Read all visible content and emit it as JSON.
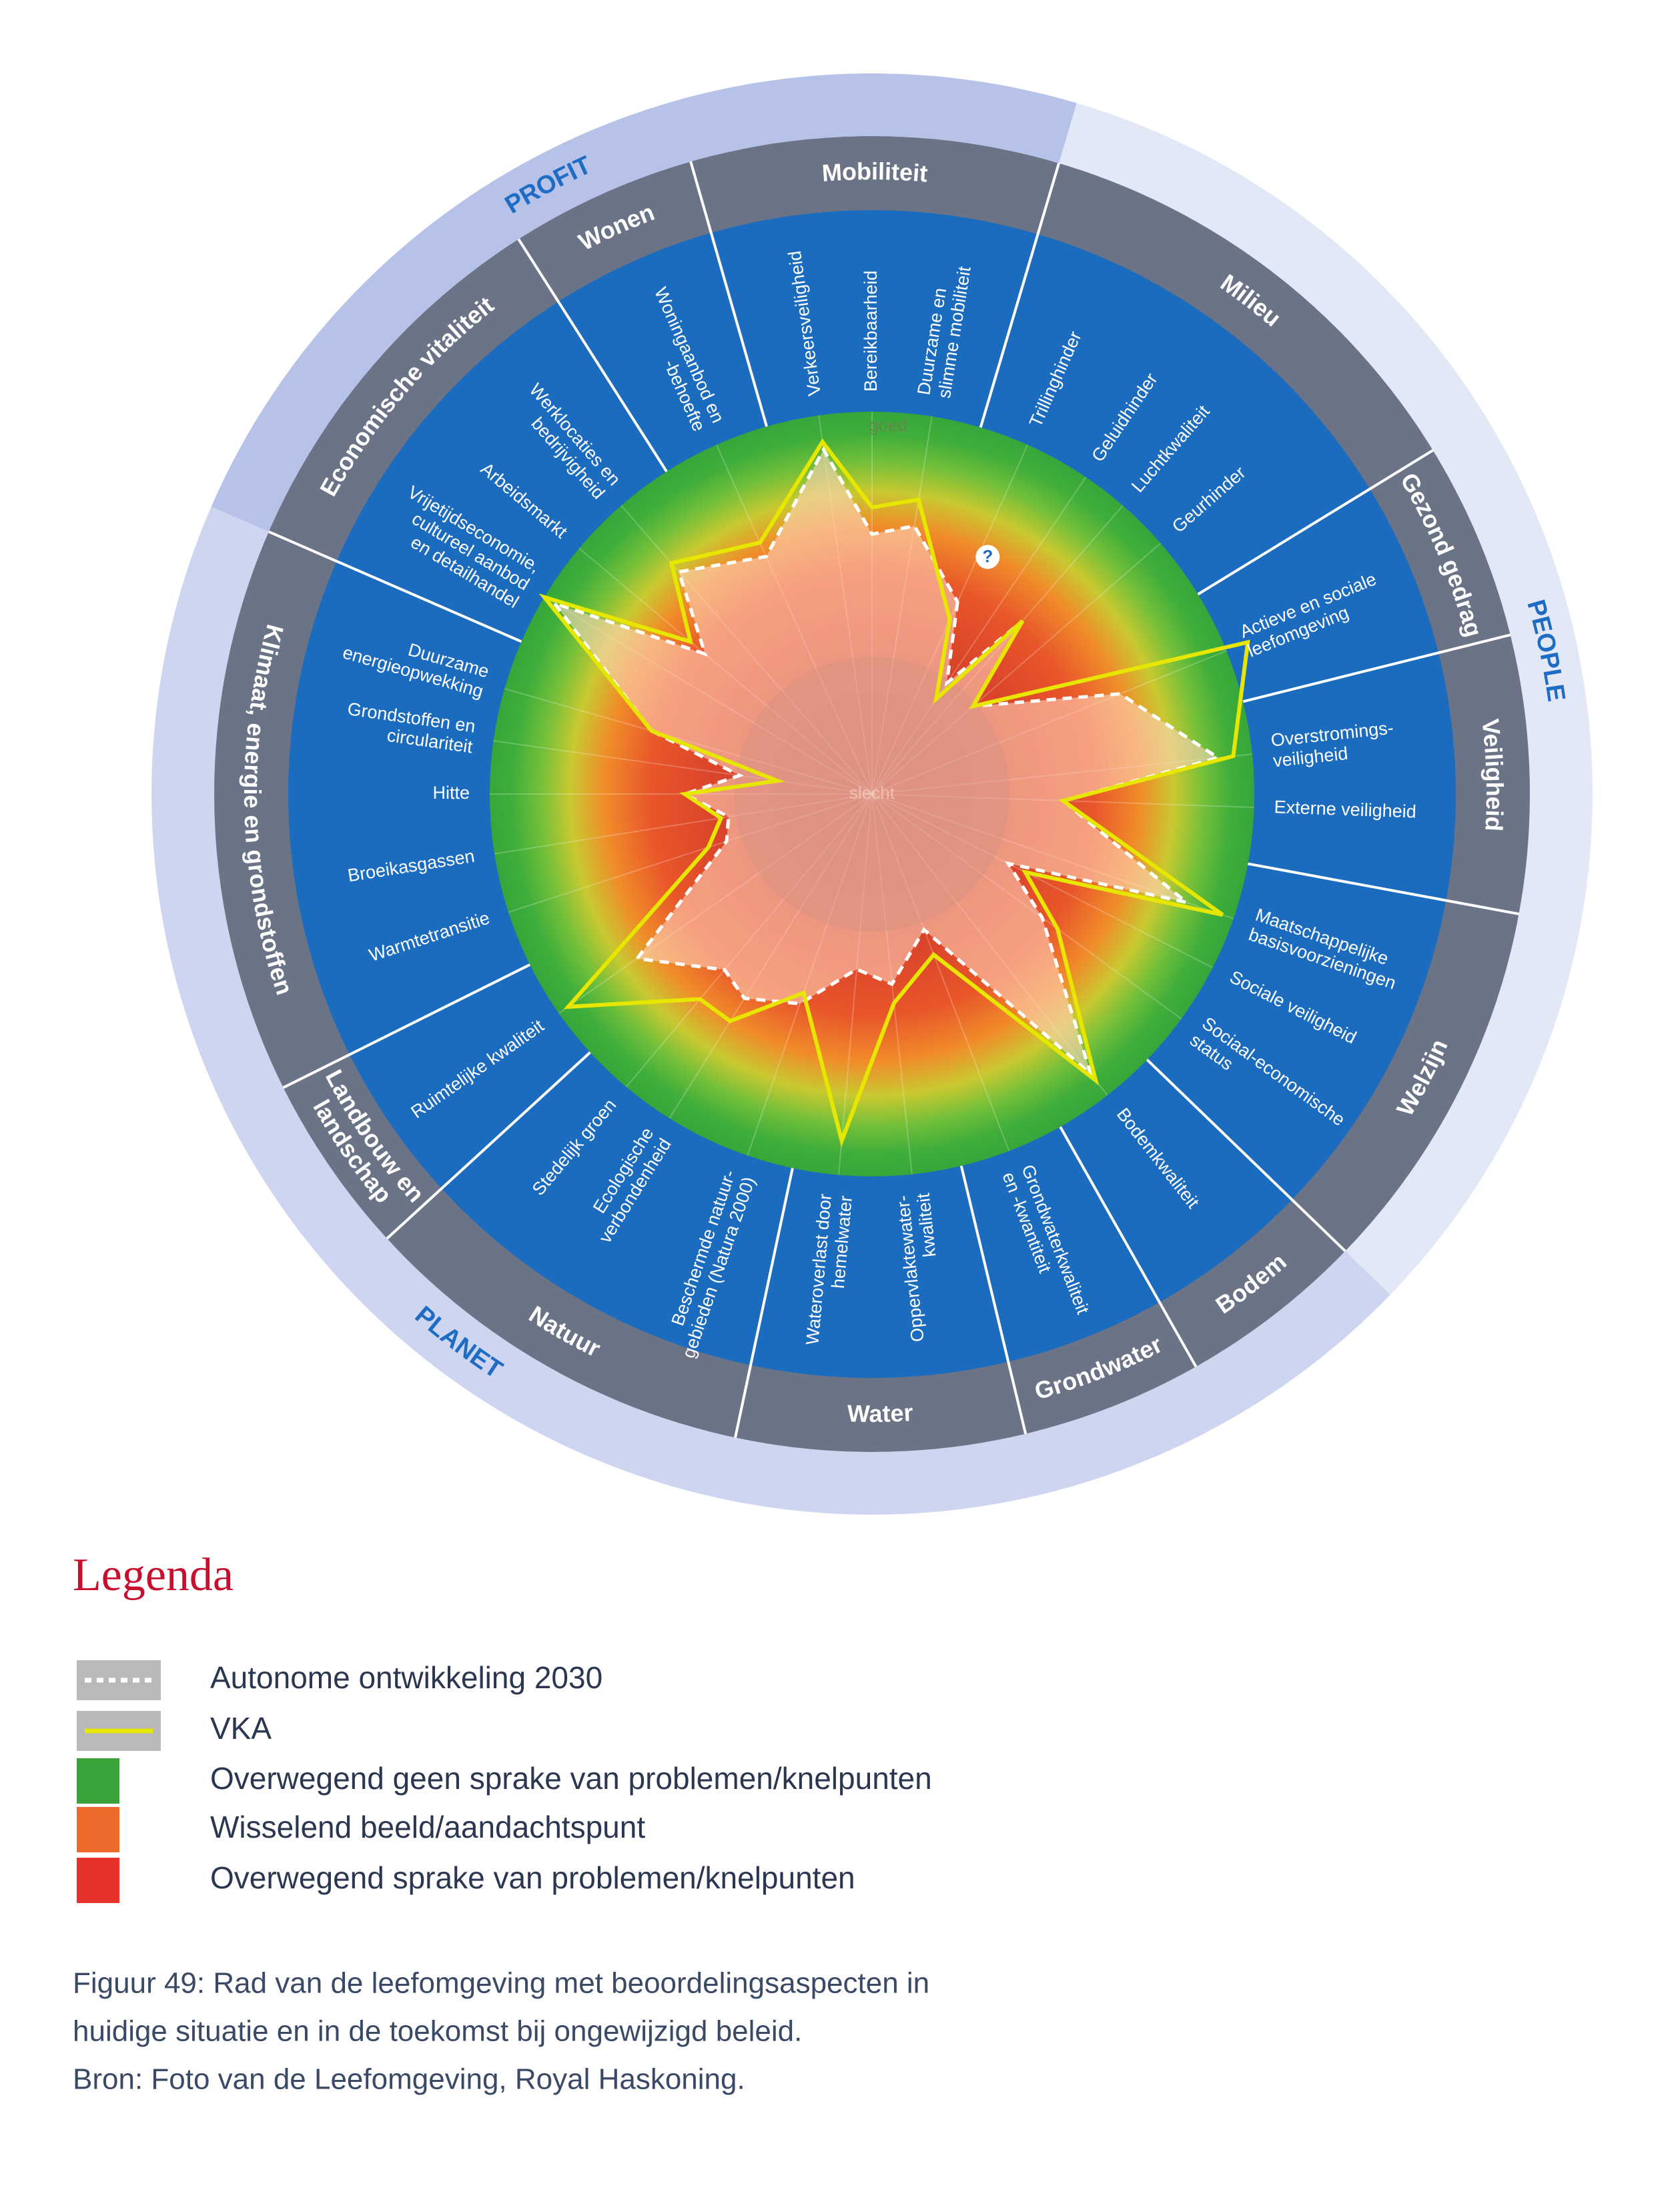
{
  "chart_data": {
    "type": "radar",
    "ylim": [
      0,
      1
    ],
    "yticks": [
      {
        "value": 0,
        "label": "slecht"
      },
      {
        "value": 1,
        "label": "goed"
      }
    ],
    "annotation": "?",
    "pillars": [
      {
        "name": "PEOPLE",
        "color": "#e3e8f7",
        "groups": [
          {
            "name": [
              "Milieu"
            ],
            "categories": [
              [
                "Trillinghinder"
              ],
              [
                "Geluidhinder"
              ],
              [
                "Luchtkwaliteit"
              ],
              [
                "Geurhinder"
              ]
            ]
          },
          {
            "name": [
              "Gezond gedrag"
            ],
            "categories": [
              [
                "Actieve en sociale",
                "leefomgeving"
              ]
            ]
          },
          {
            "name": [
              "Veiligheid"
            ],
            "categories": [
              [
                "Overstromings-",
                "veiligheid"
              ],
              [
                "Externe veiligheid"
              ]
            ]
          },
          {
            "name": [
              "Welzijn"
            ],
            "categories": [
              [
                "Maatschappelijke",
                "basisvoorzieningen"
              ],
              [
                "Sociale veiligheid"
              ],
              [
                "Sociaal-economische",
                "status"
              ]
            ]
          }
        ]
      },
      {
        "name": "PLANET",
        "color": "#cdd5f0",
        "groups": [
          {
            "name": [
              "Bodem"
            ],
            "categories": [
              [
                "Bodemkwaliteit"
              ]
            ]
          },
          {
            "name": [
              "Grondwater"
            ],
            "categories": [
              [
                "Grondwaterkwaliteit",
                "en -kwantiteit"
              ]
            ]
          },
          {
            "name": [
              "Water"
            ],
            "categories": [
              [
                "Oppervlaktewater-",
                "kwaliteit"
              ],
              [
                "Wateroverlast door",
                "hemelwater"
              ]
            ]
          },
          {
            "name": [
              "Natuur"
            ],
            "categories": [
              [
                "Beschermde natuur-",
                "gebieden (Natura 2000)"
              ],
              [
                "Ecologische",
                "verbondenheid"
              ],
              [
                "Stedelijk groen"
              ]
            ]
          },
          {
            "name": [
              "Landbouw en",
              "landschap"
            ],
            "categories": [
              [
                "Ruimtelijke kwaliteit"
              ]
            ]
          },
          {
            "name": [
              "Klimaat, energie en grondstoffen"
            ],
            "categories": [
              [
                "Warmtetransitie"
              ],
              [
                "Broeikasgassen"
              ],
              [
                "Hitte"
              ],
              [
                "Grondstoffen en",
                "circulariteit"
              ],
              [
                "Duurzame",
                "energieopwekking"
              ]
            ]
          }
        ]
      },
      {
        "name": "PROFIT",
        "color": "#b6c2e8",
        "groups": [
          {
            "name": [
              "Economische vitaliteit"
            ],
            "categories": [
              [
                "Vrijetijdseconomie,",
                "cultureel aanbod",
                "en detailhandel"
              ],
              [
                "Arbeidsmarkt"
              ],
              [
                "Werklocaties en",
                "bedrijvigheid"
              ]
            ]
          },
          {
            "name": [
              "Wonen"
            ],
            "categories": [
              [
                "Woningaanbod en",
                "-behoefte"
              ]
            ]
          },
          {
            "name": [
              "Mobiliteit"
            ],
            "categories": [
              [
                "Verkeersveiligheid"
              ],
              [
                "Bereikbaarheid"
              ],
              [
                "Duurzame en",
                "slimme mobiliteit"
              ]
            ]
          }
        ]
      }
    ],
    "series": [
      {
        "name": "Autonome ontwikkeling 2030",
        "color": "#ffffff",
        "values": [
          0.55,
          0.35,
          0.6,
          0.35,
          0.7,
          0.91,
          0.5,
          0.87,
          0.4,
          0.55,
          0.93,
          0.38,
          0.5,
          0.46,
          0.58,
          0.63,
          0.6,
          0.75,
          0.4,
          0.38,
          0.49,
          0.35,
          0.6,
          0.97,
          0.57,
          0.77,
          0.68,
          0.91,
          0.68,
          0.71
        ]
      },
      {
        "name": "VKA",
        "color": "#e6e600",
        "values": [
          0.5,
          0.3,
          0.6,
          0.35,
          1.06,
          0.95,
          0.5,
          0.97,
          0.45,
          0.6,
          0.95,
          0.45,
          0.55,
          0.91,
          0.55,
          0.7,
          0.7,
          0.97,
          0.45,
          0.4,
          0.49,
          0.25,
          0.6,
          1.0,
          0.62,
          0.8,
          0.72,
          0.93,
          0.75,
          0.78
        ]
      }
    ],
    "legend_title": "Legenda",
    "legend": [
      {
        "label": "Overwegend geen sprake van problemen/knelpunten",
        "color": "#3aa43a"
      },
      {
        "label": "Wisselend beeld/aandachtspunt",
        "color": "#ee6a2c"
      },
      {
        "label": "Overwegend sprake van problemen/knelpunten",
        "color": "#e63228"
      }
    ],
    "caption": [
      "Figuur 49: Rad van de leefomgeving met beoordelingsaspecten in",
      "huidige situatie en in de toekomst bij ongewijzigd beleid.",
      "Bron: Foto van de Leefomgeving, Royal Haskoning."
    ]
  }
}
